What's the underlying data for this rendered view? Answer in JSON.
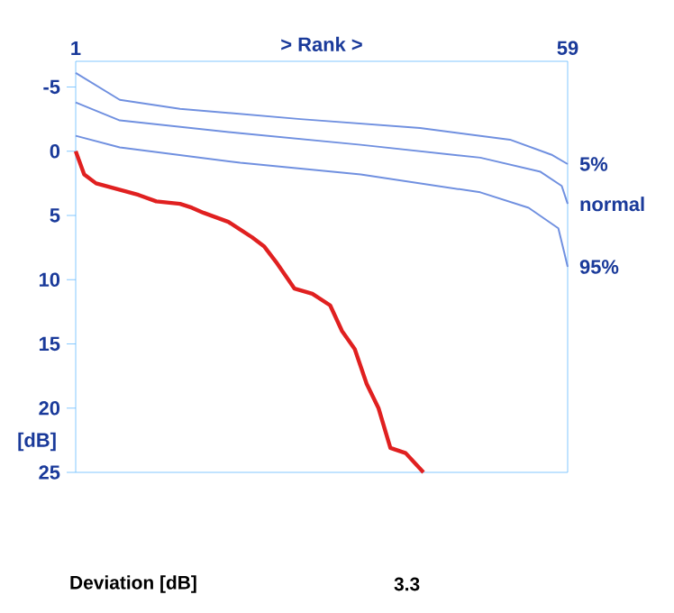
{
  "chart_data": {
    "type": "line",
    "xlabel": "> Rank >",
    "ylabel": "[dB]",
    "xlim": [
      1,
      59
    ],
    "xticks": [
      1,
      59
    ],
    "ylim": [
      25,
      -7
    ],
    "yticks": [
      -5,
      0,
      5,
      10,
      15,
      20,
      25
    ],
    "grid": false,
    "marker": "none",
    "line_style": "solid",
    "series": [
      {
        "name": "5%",
        "color": "#7090e0",
        "x": [
          1,
          6.2,
          13.3,
          27.5,
          41.6,
          52.2,
          57.2,
          59
        ],
        "values": [
          -6.1,
          -4.0,
          -3.3,
          -2.5,
          -1.8,
          -0.9,
          0.3,
          1.0
        ]
      },
      {
        "name": "normal",
        "color": "#7090e0",
        "x": [
          1,
          6.2,
          20.4,
          34.6,
          48.7,
          55.8,
          58.3,
          59
        ],
        "values": [
          -3.8,
          -2.4,
          -1.4,
          -0.5,
          0.5,
          1.6,
          2.7,
          4.1
        ]
      },
      {
        "name": "95%",
        "color": "#7090e0",
        "x": [
          1,
          6.2,
          20.4,
          34.6,
          48.7,
          54.4,
          57.9,
          58.6,
          59
        ],
        "values": [
          -1.2,
          -0.3,
          0.9,
          1.8,
          3.2,
          4.4,
          6.0,
          7.9,
          9.0
        ]
      },
      {
        "color": "#e02020",
        "x": [
          1,
          2,
          3.4,
          8.4,
          10.5,
          13.3,
          14.7,
          16.1,
          19,
          21.8,
          23.2,
          24.6,
          26.8,
          28.9,
          31,
          32.4,
          33.9,
          35.3,
          36.7,
          38.1,
          39.9,
          42
        ],
        "values": [
          0,
          1.8,
          2.5,
          3.4,
          3.9,
          4.1,
          4.4,
          4.8,
          5.5,
          6.7,
          7.4,
          8.6,
          10.7,
          11.1,
          12.0,
          14.0,
          15.4,
          18.1,
          20.0,
          23.1,
          23.5,
          25
        ]
      }
    ],
    "annotations": [
      "Deviation [dB]",
      "3.3"
    ]
  }
}
